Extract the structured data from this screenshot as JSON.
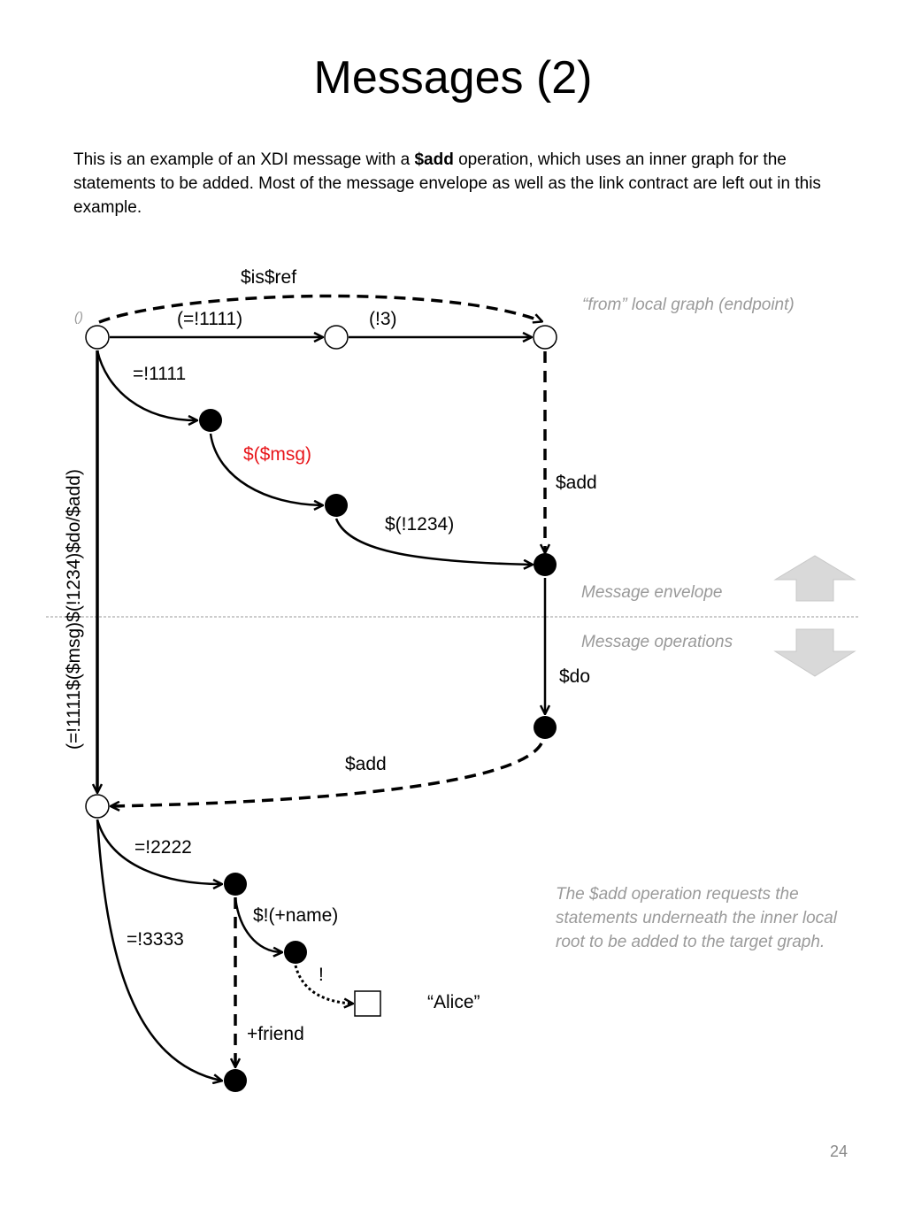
{
  "title": "Messages (2)",
  "intro": {
    "before": "This is an example of an XDI message with a ",
    "bold": "$add",
    "after": " operation, which uses an inner graph for the statements to be added. Most of the message envelope as well as the link contract are left out in this example."
  },
  "labels": {
    "is_ref": "$is$ref",
    "root": "()",
    "from_graph": "“from” local graph (endpoint)",
    "top_arc_1": "(=!1111)",
    "top_arc_2": "(!3)",
    "arc_1111": "=!1111",
    "arc_msg": "$($msg)",
    "arc_add_down": "$add",
    "arc_1234": "$(!1234)",
    "vertical_path": "(=!1111$($msg)$(!1234)$do/$add)",
    "envelope": "Message envelope",
    "operations": "Message operations",
    "arc_do": "$do",
    "arc_add_back": "$add",
    "arc_2222": "=!2222",
    "arc_name": "$!(+name)",
    "arc_3333": "=!3333",
    "arc_literal": "!",
    "literal_value": "“Alice”",
    "arc_friend": "+friend"
  },
  "side_note": "The $add operation requests the statements underneath the inner local root to be added to the target graph.",
  "page_number": "24",
  "colors": {
    "msg_label": "#e8161b",
    "note": "#9a9a9a",
    "arrow_fill": "#d9d9d9"
  }
}
